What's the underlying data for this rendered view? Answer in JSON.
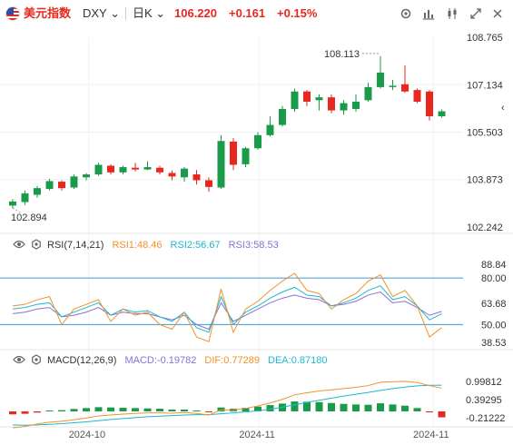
{
  "header": {
    "name": "美元指数",
    "symbol": "DXY",
    "symbol_caret": "⌄",
    "timeframe": "日K",
    "timeframe_caret": "⌄",
    "price": "106.220",
    "change": "+0.161",
    "change_pct": "+0.15%",
    "colors": {
      "up": "#e8281e",
      "down": "#1a9b4a"
    }
  },
  "toolbar": {
    "icons": [
      "gear-icon",
      "bar-chart-icon",
      "line-chart-icon",
      "candlestick-icon",
      "fullscreen-icon",
      "close-icon"
    ]
  },
  "main_axis": {
    "ticks": [
      "108.765",
      "107.134",
      "105.503",
      "103.873",
      "102.242"
    ],
    "high_label": "108.113",
    "low_label": "102.894",
    "scroll_icon": "‹"
  },
  "rsi_panel": {
    "label": "RSI(7,14,21)",
    "rsi1": "RSI1:48.46",
    "rsi2": "RSI2:56.67",
    "rsi3": "RSI3:58.53",
    "colors": {
      "rsi1": "#f0932b",
      "rsi2": "#1fb8cf",
      "rsi3": "#8b6fd6",
      "level": "#3a9ad9"
    },
    "ticks": [
      "88.84",
      "80.00",
      "63.68",
      "50.00",
      "38.53"
    ]
  },
  "macd_panel": {
    "label": "MACD(12,26,9)",
    "macd": "MACD:-0.19782",
    "dif": "DIF:0.77289",
    "dea": "DEA:0.87180",
    "colors": {
      "macd": "#8b6fd6",
      "dif": "#f0932b",
      "dea": "#1fb8cf"
    },
    "ticks": [
      "0.99812",
      "0.39295",
      "-0.21222"
    ]
  },
  "x_axis": {
    "labels": [
      "2024-10",
      "2024-11",
      "2024-11"
    ]
  },
  "chart_data": {
    "type": "candlestick",
    "candles": [
      {
        "o": 102.98,
        "h": 103.2,
        "l": 102.894,
        "c": 103.12
      },
      {
        "o": 103.1,
        "h": 103.5,
        "l": 103.0,
        "c": 103.4
      },
      {
        "o": 103.35,
        "h": 103.65,
        "l": 103.25,
        "c": 103.58
      },
      {
        "o": 103.55,
        "h": 103.9,
        "l": 103.5,
        "c": 103.82
      },
      {
        "o": 103.8,
        "h": 103.85,
        "l": 103.5,
        "c": 103.58
      },
      {
        "o": 103.6,
        "h": 104.05,
        "l": 103.55,
        "c": 103.98
      },
      {
        "o": 103.95,
        "h": 104.1,
        "l": 103.85,
        "c": 104.05
      },
      {
        "o": 104.05,
        "h": 104.45,
        "l": 104.0,
        "c": 104.38
      },
      {
        "o": 104.35,
        "h": 104.4,
        "l": 104.05,
        "c": 104.12
      },
      {
        "o": 104.12,
        "h": 104.35,
        "l": 104.05,
        "c": 104.3
      },
      {
        "o": 104.28,
        "h": 104.45,
        "l": 104.15,
        "c": 104.22
      },
      {
        "o": 104.22,
        "h": 104.5,
        "l": 104.2,
        "c": 104.3
      },
      {
        "o": 104.28,
        "h": 104.35,
        "l": 104.05,
        "c": 104.12
      },
      {
        "o": 104.1,
        "h": 104.18,
        "l": 103.85,
        "c": 103.98
      },
      {
        "o": 103.95,
        "h": 104.3,
        "l": 103.8,
        "c": 104.25
      },
      {
        "o": 104.05,
        "h": 104.2,
        "l": 103.7,
        "c": 103.85
      },
      {
        "o": 103.85,
        "h": 103.95,
        "l": 103.45,
        "c": 103.62
      },
      {
        "o": 103.6,
        "h": 105.4,
        "l": 103.55,
        "c": 105.2
      },
      {
        "o": 105.18,
        "h": 105.3,
        "l": 104.2,
        "c": 104.38
      },
      {
        "o": 104.4,
        "h": 105.0,
        "l": 104.3,
        "c": 104.95
      },
      {
        "o": 104.95,
        "h": 105.5,
        "l": 104.9,
        "c": 105.4
      },
      {
        "o": 105.4,
        "h": 106.05,
        "l": 105.35,
        "c": 105.75
      },
      {
        "o": 105.75,
        "h": 106.4,
        "l": 105.7,
        "c": 106.3
      },
      {
        "o": 106.3,
        "h": 107.0,
        "l": 106.2,
        "c": 106.9
      },
      {
        "o": 106.9,
        "h": 106.95,
        "l": 106.4,
        "c": 106.55
      },
      {
        "o": 106.6,
        "h": 106.8,
        "l": 106.25,
        "c": 106.7
      },
      {
        "o": 106.7,
        "h": 106.8,
        "l": 106.15,
        "c": 106.25
      },
      {
        "o": 106.25,
        "h": 106.6,
        "l": 106.1,
        "c": 106.5
      },
      {
        "o": 106.3,
        "h": 106.8,
        "l": 106.2,
        "c": 106.55
      },
      {
        "o": 106.6,
        "h": 107.2,
        "l": 106.55,
        "c": 107.05
      },
      {
        "o": 107.05,
        "h": 108.113,
        "l": 107.0,
        "c": 107.55
      },
      {
        "o": 107.1,
        "h": 107.3,
        "l": 106.95,
        "c": 107.1
      },
      {
        "o": 107.15,
        "h": 107.8,
        "l": 106.85,
        "c": 106.9
      },
      {
        "o": 106.95,
        "h": 107.0,
        "l": 106.5,
        "c": 106.55
      },
      {
        "o": 106.9,
        "h": 106.95,
        "l": 105.9,
        "c": 106.05
      },
      {
        "o": 106.05,
        "h": 106.28,
        "l": 106.0,
        "c": 106.22
      }
    ],
    "rsi": {
      "rsi1": [
        62,
        63,
        66,
        68,
        50,
        60,
        63,
        66,
        52,
        60,
        56,
        58,
        50,
        47,
        58,
        42,
        39,
        73,
        45,
        60,
        65,
        72,
        78,
        83,
        72,
        70,
        60,
        66,
        70,
        78,
        82,
        68,
        72,
        62,
        42,
        48
      ],
      "rsi2": [
        60,
        61,
        63,
        64,
        55,
        58,
        61,
        64,
        56,
        60,
        58,
        59,
        55,
        52,
        58,
        48,
        45,
        68,
        50,
        58,
        62,
        67,
        71,
        74,
        69,
        68,
        62,
        64,
        67,
        72,
        75,
        66,
        68,
        62,
        53,
        57
      ],
      "rsi3": [
        57,
        58,
        60,
        61,
        55,
        56,
        58,
        61,
        56,
        58,
        57,
        57,
        55,
        53,
        56,
        50,
        47,
        64,
        52,
        56,
        60,
        64,
        67,
        69,
        67,
        66,
        62,
        63,
        65,
        69,
        71,
        64,
        65,
        61,
        56,
        58.5
      ]
    },
    "macd": {
      "dif": [
        -0.55,
        -0.5,
        -0.42,
        -0.36,
        -0.33,
        -0.28,
        -0.22,
        -0.15,
        -0.12,
        -0.09,
        -0.07,
        -0.05,
        -0.05,
        -0.06,
        -0.04,
        -0.07,
        -0.12,
        0.05,
        0.04,
        0.1,
        0.18,
        0.28,
        0.4,
        0.55,
        0.62,
        0.68,
        0.72,
        0.76,
        0.8,
        0.86,
        0.97,
        0.99,
        1.0,
        0.96,
        0.86,
        0.77289
      ],
      "dea": [
        -0.45,
        -0.46,
        -0.45,
        -0.43,
        -0.41,
        -0.38,
        -0.35,
        -0.31,
        -0.27,
        -0.24,
        -0.21,
        -0.18,
        -0.16,
        -0.14,
        -0.12,
        -0.11,
        -0.11,
        -0.08,
        -0.05,
        -0.02,
        0.02,
        0.07,
        0.14,
        0.22,
        0.3,
        0.37,
        0.44,
        0.51,
        0.57,
        0.63,
        0.7,
        0.76,
        0.81,
        0.85,
        0.87,
        0.8718
      ],
      "hist": [
        -0.1,
        -0.08,
        -0.04,
        0.03,
        0.04,
        0.08,
        0.11,
        0.14,
        0.13,
        0.12,
        0.11,
        0.1,
        0.09,
        0.06,
        0.06,
        0.03,
        -0.02,
        0.13,
        0.09,
        0.12,
        0.16,
        0.21,
        0.26,
        0.33,
        0.32,
        0.31,
        0.28,
        0.25,
        0.23,
        0.22,
        0.27,
        0.23,
        0.19,
        0.11,
        -0.01,
        -0.19782
      ]
    }
  }
}
